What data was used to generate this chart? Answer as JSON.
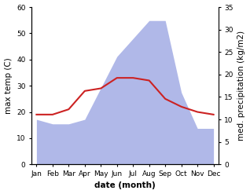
{
  "months": [
    "Jan",
    "Feb",
    "Mar",
    "Apr",
    "May",
    "Jun",
    "Jul",
    "Aug",
    "Sep",
    "Oct",
    "Nov",
    "Dec"
  ],
  "max_temp": [
    19,
    19,
    21,
    28,
    29,
    33,
    33,
    32,
    25,
    22,
    20,
    19
  ],
  "precipitation": [
    10,
    9,
    9,
    10,
    17,
    24,
    28,
    32,
    32,
    16,
    8,
    8
  ],
  "temp_ylim": [
    0,
    60
  ],
  "precip_ylim": [
    0,
    35
  ],
  "temp_color": "#cc2222",
  "precip_color": "#b0b8e8",
  "xlabel": "date (month)",
  "ylabel_left": "max temp (C)",
  "ylabel_right": "med. precipitation (kg/m2)",
  "label_fontsize": 7.5,
  "tick_fontsize": 6.5
}
